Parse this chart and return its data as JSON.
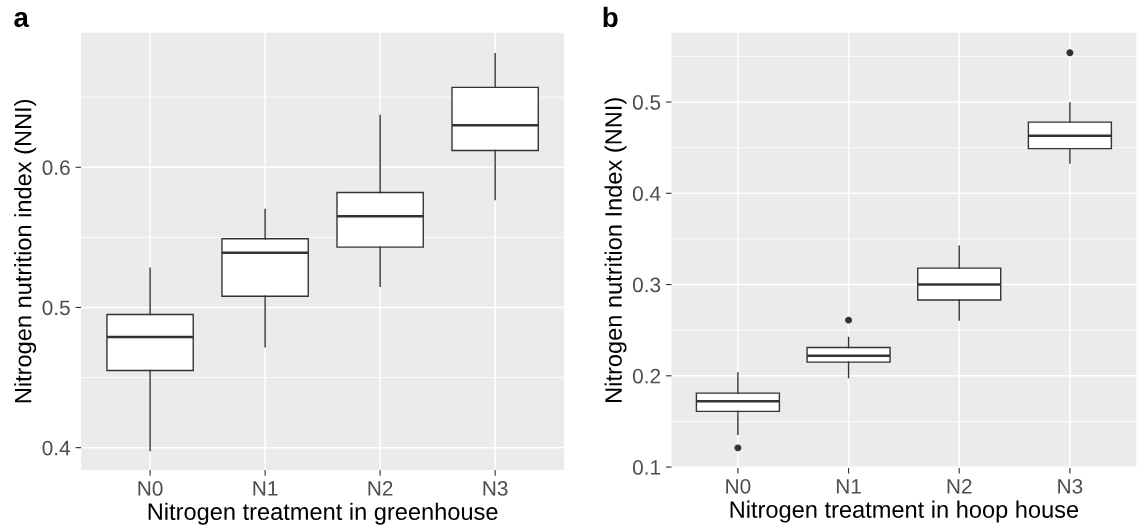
{
  "chart_data": [
    {
      "type": "box",
      "title": "a",
      "xlabel": "Nitrogen treatment in greenhouse",
      "ylabel": "Nitrogen nutrition index (NNI)",
      "categories": [
        "N0",
        "N1",
        "N2",
        "N3"
      ],
      "ylim": [
        0.384,
        0.696
      ],
      "yticks": [
        0.4,
        0.5,
        0.6
      ],
      "grid": true,
      "legend": false,
      "boxes": [
        {
          "low": 0.398,
          "q1": 0.455,
          "median": 0.479,
          "q3": 0.495,
          "high": 0.528
        },
        {
          "low": 0.472,
          "q1": 0.508,
          "median": 0.539,
          "q3": 0.549,
          "high": 0.57
        },
        {
          "low": 0.515,
          "q1": 0.543,
          "median": 0.565,
          "q3": 0.582,
          "high": 0.637
        },
        {
          "low": 0.577,
          "q1": 0.612,
          "median": 0.63,
          "q3": 0.657,
          "high": 0.681
        }
      ]
    },
    {
      "type": "box",
      "title": "b",
      "xlabel": "Nitrogen treatment in hoop house",
      "ylabel": "Nitrogen nutrition Index (NNI)",
      "categories": [
        "N0",
        "N1",
        "N2",
        "N3"
      ],
      "ylim": [
        0.099,
        0.576
      ],
      "yticks": [
        0.1,
        0.2,
        0.3,
        0.4,
        0.5
      ],
      "grid": true,
      "legend": false,
      "boxes": [
        {
          "low": 0.136,
          "q1": 0.161,
          "median": 0.172,
          "q3": 0.181,
          "high": 0.203,
          "outliers": [
            0.121
          ]
        },
        {
          "low": 0.198,
          "q1": 0.215,
          "median": 0.222,
          "q3": 0.231,
          "high": 0.242,
          "outliers": [
            0.261
          ]
        },
        {
          "low": 0.261,
          "q1": 0.283,
          "median": 0.3,
          "q3": 0.318,
          "high": 0.342
        },
        {
          "low": 0.433,
          "q1": 0.449,
          "median": 0.463,
          "q3": 0.478,
          "high": 0.499,
          "outliers": [
            0.554
          ]
        }
      ]
    }
  ]
}
